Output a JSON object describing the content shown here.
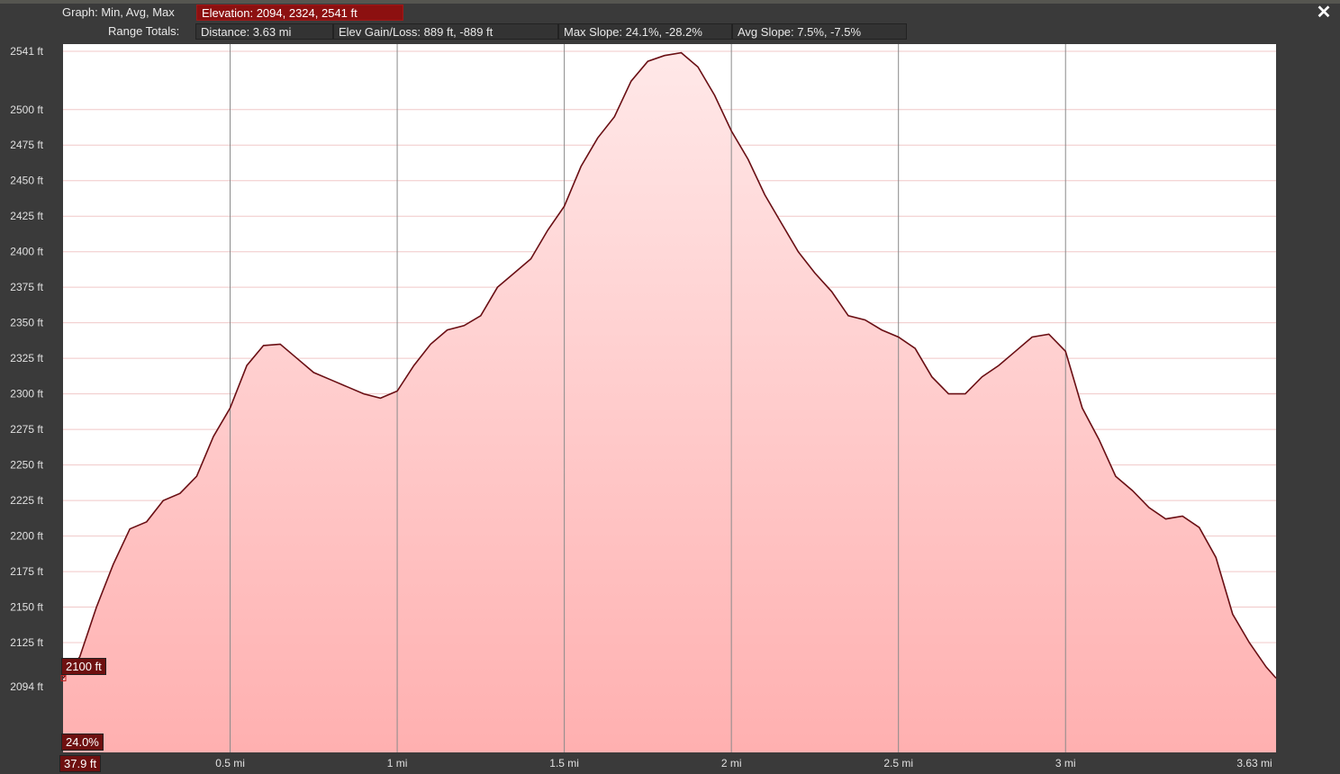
{
  "header": {
    "graph_label": "Graph: Min, Avg, Max",
    "elevation": "Elevation: 2094, 2324, 2541 ft",
    "range_label": "Range Totals:",
    "distance": "Distance: 3.63 mi",
    "elev_gain": "Elev Gain/Loss: 889 ft, -889 ft",
    "max_slope": "Max Slope: 24.1%, -28.2%",
    "avg_slope": "Avg Slope: 7.5%, -7.5%"
  },
  "close_icon": "close-icon",
  "cursor_readouts": {
    "elevation": "2100 ft",
    "slope": "24.0%",
    "distance": "37.9 ft"
  },
  "colors": {
    "line": "#6a0f14",
    "fill_top": "#ffe8e8",
    "fill_bottom": "#ffb0b0",
    "accent": "#8c1010"
  },
  "chart_data": {
    "type": "area",
    "ylim": [
      2094,
      2541
    ],
    "xlim": [
      0,
      3.63
    ],
    "y_ticks": [
      {
        "value": 2541,
        "label": "2541 ft"
      },
      {
        "value": 2500,
        "label": "2500 ft"
      },
      {
        "value": 2475,
        "label": "2475 ft"
      },
      {
        "value": 2450,
        "label": "2450 ft"
      },
      {
        "value": 2425,
        "label": "2425 ft"
      },
      {
        "value": 2400,
        "label": "2400 ft"
      },
      {
        "value": 2375,
        "label": "2375 ft"
      },
      {
        "value": 2350,
        "label": "2350 ft"
      },
      {
        "value": 2325,
        "label": "2325 ft"
      },
      {
        "value": 2300,
        "label": "2300 ft"
      },
      {
        "value": 2275,
        "label": "2275 ft"
      },
      {
        "value": 2250,
        "label": "2250 ft"
      },
      {
        "value": 2225,
        "label": "2225 ft"
      },
      {
        "value": 2200,
        "label": "2200 ft"
      },
      {
        "value": 2175,
        "label": "2175 ft"
      },
      {
        "value": 2150,
        "label": "2150 ft"
      },
      {
        "value": 2125,
        "label": "2125 ft"
      },
      {
        "value": 2094,
        "label": "2094 ft"
      }
    ],
    "x_ticks": [
      {
        "value": 0.5,
        "label": "0.5 mi"
      },
      {
        "value": 1,
        "label": "1 mi"
      },
      {
        "value": 1.5,
        "label": "1.5 mi"
      },
      {
        "value": 2,
        "label": "2 mi"
      },
      {
        "value": 2.5,
        "label": "2.5 mi"
      },
      {
        "value": 3,
        "label": "3 mi"
      },
      {
        "value": 3.63,
        "label": "3.63 mi"
      }
    ],
    "x": [
      0,
      0.05,
      0.1,
      0.15,
      0.2,
      0.25,
      0.3,
      0.35,
      0.4,
      0.45,
      0.5,
      0.55,
      0.6,
      0.65,
      0.7,
      0.75,
      0.8,
      0.85,
      0.9,
      0.95,
      1.0,
      1.05,
      1.1,
      1.15,
      1.2,
      1.25,
      1.3,
      1.35,
      1.4,
      1.45,
      1.5,
      1.55,
      1.6,
      1.65,
      1.7,
      1.75,
      1.8,
      1.85,
      1.9,
      1.95,
      2.0,
      2.05,
      2.1,
      2.15,
      2.2,
      2.25,
      2.3,
      2.35,
      2.4,
      2.45,
      2.5,
      2.55,
      2.6,
      2.65,
      2.7,
      2.75,
      2.8,
      2.85,
      2.9,
      2.95,
      3.0,
      3.05,
      3.1,
      3.15,
      3.2,
      3.25,
      3.3,
      3.35,
      3.4,
      3.45,
      3.5,
      3.55,
      3.6,
      3.63
    ],
    "y": [
      2100,
      2115,
      2150,
      2180,
      2205,
      2210,
      2225,
      2230,
      2242,
      2270,
      2290,
      2320,
      2334,
      2335,
      2325,
      2315,
      2310,
      2305,
      2300,
      2297,
      2302,
      2320,
      2335,
      2345,
      2348,
      2355,
      2375,
      2385,
      2395,
      2415,
      2432,
      2460,
      2480,
      2495,
      2520,
      2534,
      2538,
      2540,
      2530,
      2510,
      2485,
      2465,
      2440,
      2420,
      2400,
      2385,
      2372,
      2355,
      2352,
      2345,
      2340,
      2332,
      2312,
      2300,
      2300,
      2312,
      2320,
      2330,
      2340,
      2342,
      2330,
      2290,
      2268,
      2242,
      2232,
      2220,
      2212,
      2214,
      2206,
      2185,
      2145,
      2125,
      2108,
      2100
    ],
    "series_name": ""
  }
}
